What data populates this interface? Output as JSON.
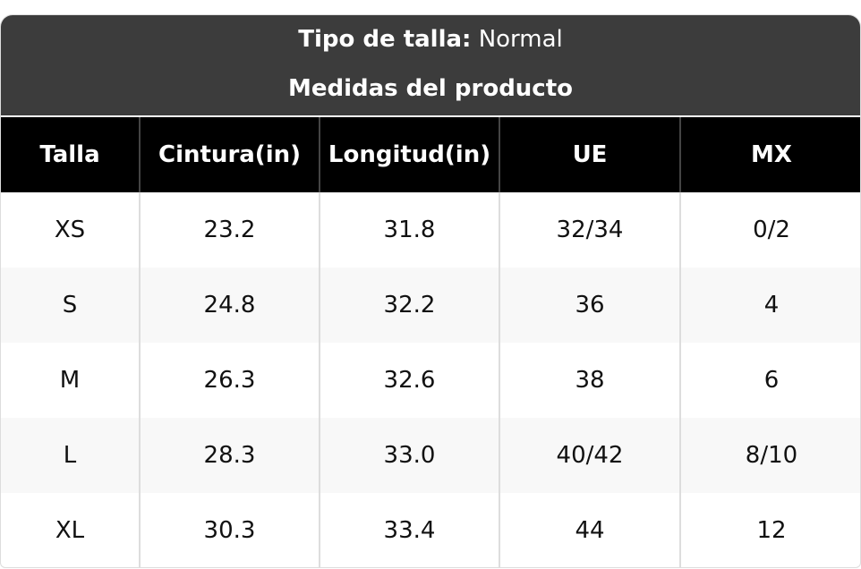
{
  "header": {
    "size_type_label": "Tipo de talla:",
    "size_type_value": "Normal",
    "subtitle": "Medidas del producto"
  },
  "table": {
    "columns": [
      "Talla",
      "Cintura(in)",
      "Longitud(in)",
      "UE",
      "MX"
    ],
    "rows": [
      [
        "XS",
        "23.2",
        "31.8",
        "32/34",
        "0/2"
      ],
      [
        "S",
        "24.8",
        "32.2",
        "36",
        "4"
      ],
      [
        "M",
        "26.3",
        "32.6",
        "38",
        "6"
      ],
      [
        "L",
        "28.3",
        "33.0",
        "40/42",
        "8/10"
      ],
      [
        "XL",
        "30.3",
        "33.4",
        "44",
        "12"
      ]
    ]
  }
}
